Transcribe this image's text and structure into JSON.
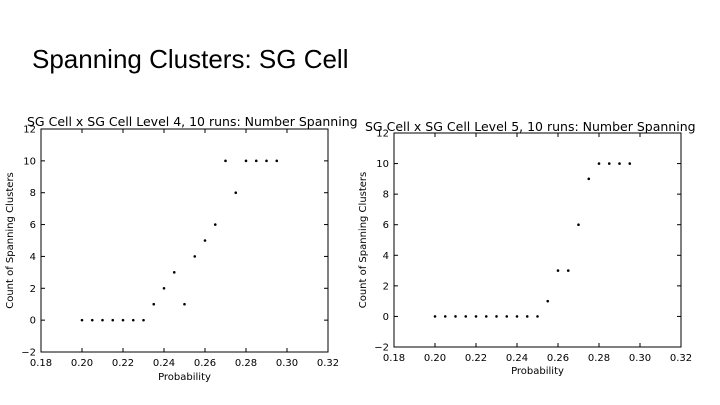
{
  "slide": {
    "title": "Spanning Clusters: SG Cell"
  },
  "chart_data": [
    {
      "type": "scatter",
      "title": "SG Cell x SG Cell Level 4, 10 runs: Number Spanning",
      "xlabel": "Probability",
      "ylabel": "Count of Spanning Clusters",
      "xlim": [
        0.18,
        0.32
      ],
      "ylim": [
        -2,
        12
      ],
      "xticks": [
        "0.18",
        "0.20",
        "0.22",
        "0.24",
        "0.26",
        "0.28",
        "0.30",
        "0.32"
      ],
      "yticks": [
        "−2",
        "0",
        "2",
        "4",
        "6",
        "8",
        "10",
        "12"
      ],
      "grid": false,
      "series": [
        {
          "x": [
            0.2,
            0.205,
            0.21,
            0.215,
            0.22,
            0.225,
            0.23,
            0.235,
            0.24,
            0.245,
            0.25,
            0.255,
            0.26,
            0.265,
            0.27,
            0.275,
            0.28,
            0.285,
            0.29,
            0.295
          ],
          "y": [
            0,
            0,
            0,
            0,
            0,
            0,
            0,
            1,
            2,
            3,
            1,
            4,
            5,
            6,
            10,
            8,
            10,
            10,
            10,
            10
          ]
        }
      ]
    },
    {
      "type": "scatter",
      "title": "SG Cell x SG Cell Level 5, 10 runs: Number Spanning",
      "xlabel": "Probability",
      "ylabel": "Count of Spanning Clusters",
      "xlim": [
        0.18,
        0.32
      ],
      "ylim": [
        -2,
        12
      ],
      "xticks": [
        "0.18",
        "0.20",
        "0.22",
        "0.24",
        "0.26",
        "0.28",
        "0.30",
        "0.32"
      ],
      "yticks": [
        "−2",
        "0",
        "2",
        "4",
        "6",
        "8",
        "10",
        "12"
      ],
      "grid": false,
      "series": [
        {
          "x": [
            0.2,
            0.205,
            0.21,
            0.215,
            0.22,
            0.225,
            0.23,
            0.235,
            0.24,
            0.245,
            0.25,
            0.255,
            0.26,
            0.265,
            0.27,
            0.275,
            0.28,
            0.285,
            0.29,
            0.295
          ],
          "y": [
            0,
            0,
            0,
            0,
            0,
            0,
            0,
            0,
            0,
            0,
            0,
            1,
            3,
            3,
            6,
            9,
            10,
            10,
            10,
            10
          ]
        }
      ]
    }
  ]
}
